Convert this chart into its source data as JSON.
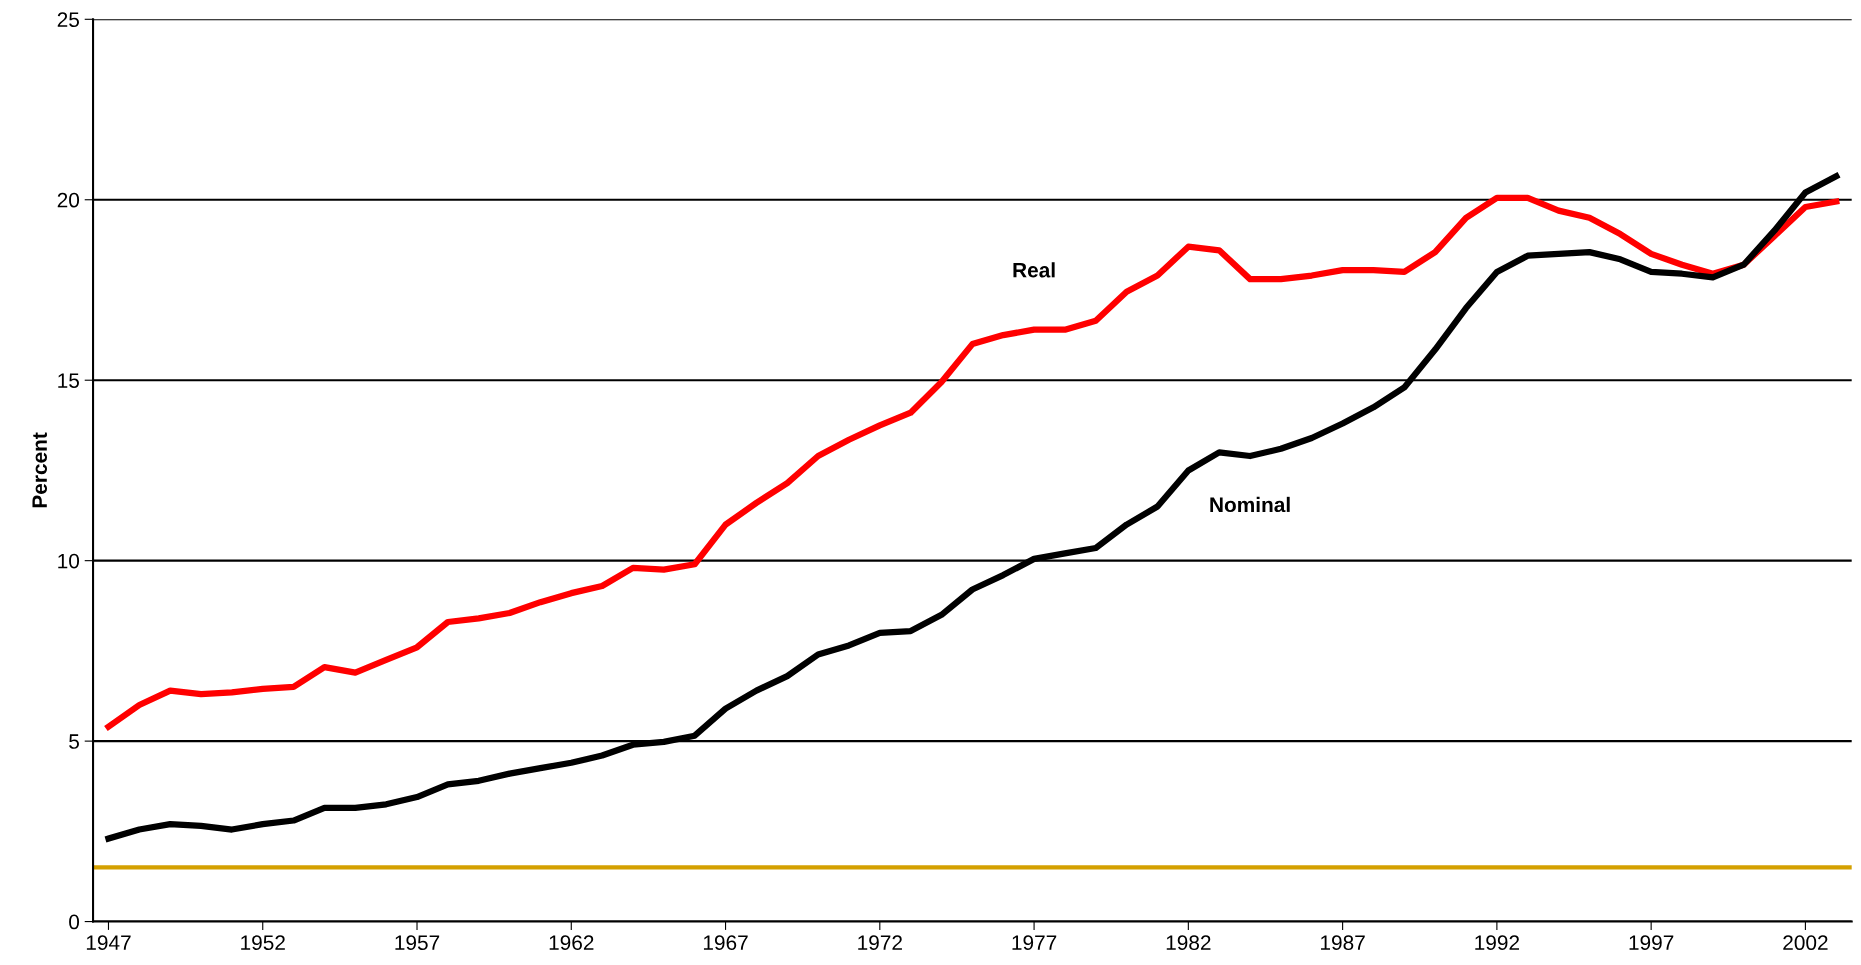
{
  "chart_data": {
    "type": "line",
    "ylabel": "Percent",
    "x": [
      1947,
      1948,
      1949,
      1950,
      1951,
      1952,
      1953,
      1954,
      1955,
      1956,
      1957,
      1958,
      1959,
      1960,
      1961,
      1962,
      1963,
      1964,
      1965,
      1966,
      1967,
      1968,
      1969,
      1970,
      1971,
      1972,
      1973,
      1974,
      1975,
      1976,
      1977,
      1978,
      1979,
      1980,
      1981,
      1982,
      1983,
      1984,
      1985,
      1986,
      1987,
      1988,
      1989,
      1990,
      1991,
      1992,
      1993,
      1994,
      1995,
      1996,
      1997,
      1998,
      1999,
      2000,
      2001,
      2002,
      2003
    ],
    "series": [
      {
        "name": "Real",
        "color": "#ff0000",
        "values": [
          5.4,
          6.0,
          6.4,
          6.3,
          6.35,
          6.45,
          6.5,
          7.05,
          6.9,
          7.25,
          7.6,
          8.3,
          8.4,
          8.55,
          8.85,
          9.1,
          9.3,
          9.8,
          9.75,
          9.9,
          11.0,
          11.6,
          12.15,
          12.9,
          13.35,
          13.75,
          14.1,
          14.95,
          16.0,
          16.25,
          16.4,
          16.4,
          16.65,
          17.45,
          17.9,
          18.7,
          18.6,
          17.8,
          17.8,
          17.9,
          18.05,
          18.05,
          18.0,
          18.55,
          19.5,
          20.05,
          20.05,
          19.7,
          19.5,
          19.05,
          18.5,
          18.2,
          17.95,
          18.2,
          19.0,
          19.8,
          19.95
        ]
      },
      {
        "name": "Nominal",
        "color": "#000000",
        "values": [
          2.3,
          2.55,
          2.7,
          2.65,
          2.55,
          2.7,
          2.8,
          3.15,
          3.15,
          3.25,
          3.45,
          3.8,
          3.9,
          4.1,
          4.25,
          4.4,
          4.6,
          4.9,
          4.98,
          5.15,
          5.9,
          6.4,
          6.8,
          7.4,
          7.65,
          8.0,
          8.05,
          8.5,
          9.2,
          9.6,
          10.05,
          10.2,
          10.35,
          11.0,
          11.5,
          12.5,
          13.0,
          12.9,
          13.1,
          13.4,
          13.8,
          14.25,
          14.8,
          15.85,
          17.0,
          18.0,
          18.45,
          18.5,
          18.55,
          18.35,
          18.0,
          17.95,
          17.85,
          18.2,
          19.15,
          20.2,
          20.65
        ]
      }
    ],
    "ref_lines": [
      {
        "axis": "y",
        "value": 1.5,
        "color": "#d4a000"
      }
    ],
    "xlim": [
      1946.5,
      2003.5
    ],
    "xticks": [
      1947,
      1952,
      1957,
      1962,
      1967,
      1972,
      1977,
      1982,
      1987,
      1992,
      1997,
      2002
    ],
    "ylim": [
      0,
      25
    ],
    "yticks": [
      0,
      5,
      10,
      15,
      20,
      25
    ],
    "grid": "y",
    "legend": false,
    "marker": "none",
    "line_style": "solid"
  }
}
